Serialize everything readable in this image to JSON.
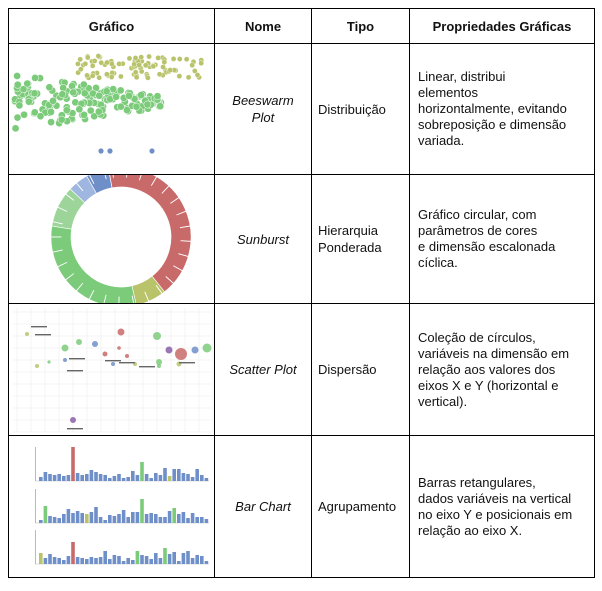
{
  "headers": [
    "Gráfico",
    "Nome",
    "Tipo",
    "Propriedades Gráficas"
  ],
  "rows": [
    {
      "name_lines": [
        "Beeswarm",
        "Plot"
      ],
      "tipo_lines": [
        "Distribuição"
      ],
      "prop_lines": [
        "Linear,  distribui",
        "elementos",
        "horizontalmente, evitando",
        "sobreposição e dimensão",
        "variada."
      ],
      "icon": "beeswarm-plot-thumbnail"
    },
    {
      "name_lines": [
        "Sunburst"
      ],
      "tipo_lines": [
        "Hierarquia",
        "Ponderada"
      ],
      "prop_lines": [
        "Gráfico      circular,      com",
        "parâmetros de cores",
        "e   dimensão  escalonada",
        "cíclica."
      ],
      "icon": "sunburst-thumbnail"
    },
    {
      "name_lines": [
        "Scatter Plot"
      ],
      "tipo_lines": [
        "Dispersão"
      ],
      "prop_lines": [
        "Coleção de círculos,",
        "variáveis na dimensão em",
        "relação aos valores dos",
        "eixos X e Y (horizontal e",
        "vertical)."
      ],
      "icon": "scatter-plot-thumbnail"
    },
    {
      "name_lines": [
        "Bar Chart"
      ],
      "tipo_lines": [
        "Agrupamento"
      ],
      "prop_lines": [
        "Barras retangulares,",
        "dados variáveis na vertical",
        "no eixo Y e posicionais em",
        "relação ao eixo X."
      ],
      "icon": "bar-chart-thumbnail"
    }
  ],
  "colors": {
    "green": "#7ccb7a",
    "olive": "#b9c36a",
    "blue": "#6f8fc9",
    "red": "#c96a6a",
    "purple": "#8a5fa8"
  }
}
